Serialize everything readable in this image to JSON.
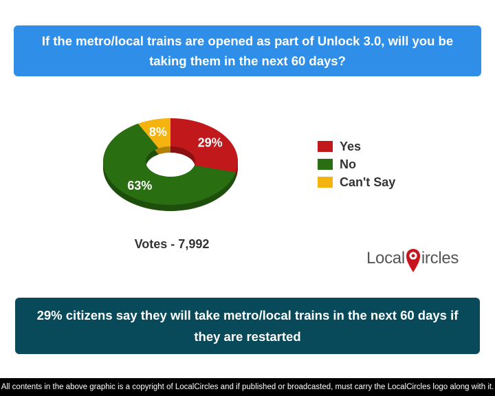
{
  "question": "If the metro/local trains are opened as part of Unlock 3.0, will you be taking them in the next 60 days?",
  "chart_data": {
    "type": "pie",
    "donut": true,
    "slices": [
      {
        "label": "Yes",
        "value": 29,
        "display": "29%",
        "color": "#c0181b"
      },
      {
        "label": "No",
        "value": 63,
        "display": "63%",
        "color": "#2a6e12"
      },
      {
        "label": "Can't Say",
        "value": 8,
        "display": "8%",
        "color": "#f4b30e"
      }
    ],
    "legend_position": "right"
  },
  "votes": "Votes - 7,992",
  "logo": {
    "before": "Local",
    "after": "ircles",
    "brand_color": "#c8141e"
  },
  "summary": "29% citizens say they will take metro/local trains in the next 60 days if they are restarted",
  "footer": "All contents in the above graphic is a copyright of LocalCircles and if published or broadcasted, must carry the LocalCircles logo along with it.",
  "colors": {
    "question_bg": "#2f8fe8",
    "summary_bg": "#08495a",
    "footer_bg": "#000000"
  }
}
